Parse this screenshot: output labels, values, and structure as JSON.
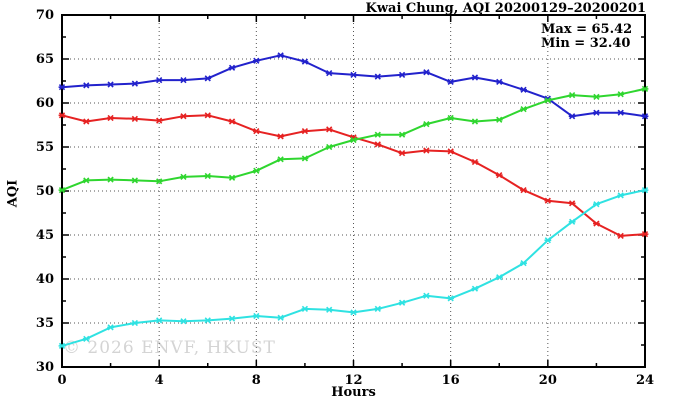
{
  "chart_data": {
    "type": "line",
    "title": "Kwai Chung, AQI 20200129–20200201",
    "xlabel": "Hours",
    "ylabel": "AQI",
    "xlim": [
      0,
      24
    ],
    "ylim": [
      30,
      70
    ],
    "x_major_ticks": [
      0,
      4,
      8,
      12,
      16,
      20,
      24
    ],
    "x_minor_step": 2,
    "y_major_ticks": [
      30,
      35,
      40,
      45,
      50,
      55,
      60,
      65,
      70
    ],
    "y_minor_step": 2.5,
    "grid": true,
    "legend": "none",
    "marker": "star",
    "annotation": {
      "max_label": "Max = 65.42",
      "min_label": "Min = 32.40"
    },
    "watermark": "© 2026 ENVF, HKUST",
    "x": [
      0,
      1,
      2,
      3,
      4,
      5,
      6,
      7,
      8,
      9,
      10,
      11,
      12,
      13,
      14,
      15,
      16,
      17,
      18,
      19,
      20,
      21,
      22,
      23,
      24
    ],
    "series": [
      {
        "name": "series-blue",
        "color": "#2222cc",
        "values": [
          61.8,
          62.0,
          62.1,
          62.2,
          62.6,
          62.6,
          62.8,
          64.0,
          64.8,
          65.42,
          64.7,
          63.4,
          63.2,
          63.0,
          63.2,
          63.5,
          62.4,
          62.9,
          62.4,
          61.5,
          60.5,
          58.5,
          58.9,
          58.9,
          58.5
        ]
      },
      {
        "name": "series-red",
        "color": "#e62222",
        "values": [
          58.6,
          57.9,
          58.3,
          58.2,
          58.0,
          58.5,
          58.6,
          57.9,
          56.8,
          56.2,
          56.8,
          57.0,
          56.1,
          55.3,
          54.3,
          54.6,
          54.5,
          53.3,
          51.8,
          50.1,
          48.9,
          48.6,
          46.3,
          44.9,
          45.1
        ]
      },
      {
        "name": "series-green",
        "color": "#2fd62f",
        "values": [
          50.1,
          51.2,
          51.3,
          51.2,
          51.1,
          51.6,
          51.7,
          51.5,
          52.3,
          53.6,
          53.7,
          55.0,
          55.8,
          56.4,
          56.4,
          57.6,
          58.3,
          57.9,
          58.1,
          59.3,
          60.3,
          60.9,
          60.7,
          61.0,
          61.6
        ]
      },
      {
        "name": "series-cyan",
        "color": "#2fe2e2",
        "values": [
          32.4,
          33.2,
          34.5,
          35.0,
          35.3,
          35.2,
          35.3,
          35.5,
          35.8,
          35.6,
          36.6,
          36.5,
          36.2,
          36.6,
          37.3,
          38.1,
          37.8,
          38.9,
          40.2,
          41.8,
          44.4,
          46.5,
          48.5,
          49.5,
          50.1
        ]
      }
    ],
    "grid_color": "#555555",
    "axis_color": "#000000"
  }
}
